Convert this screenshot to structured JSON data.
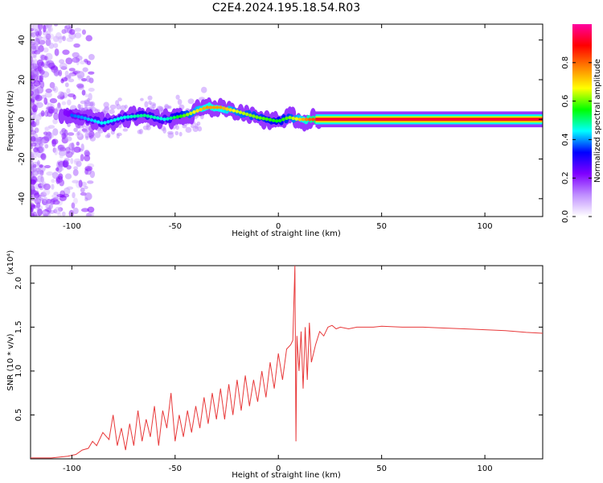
{
  "page_title": "C2E4.2024.195.18.54.R03",
  "chart_data": [
    {
      "type": "heatmap",
      "xlabel": "Height of straight line (km)",
      "ylabel": "Frequency (Hz)",
      "xlim": [
        -120,
        128
      ],
      "ylim": [
        -49,
        48
      ],
      "x_ticks": [
        -100,
        -50,
        0,
        50,
        100
      ],
      "y_ticks": [
        -40,
        -20,
        0,
        20,
        40
      ],
      "x_tick_labels": [
        "-100",
        "-50",
        "0",
        "50",
        "100"
      ],
      "y_tick_labels": [
        "-40",
        "-20",
        "0",
        "20",
        "40"
      ],
      "colorbar": {
        "label": "Normalized spectral amplitude",
        "range": [
          0,
          1
        ],
        "ticks": [
          0.0,
          0.2,
          0.4,
          0.6,
          0.8
        ],
        "tick_labels": [
          "0.0",
          "0.2",
          "0.4",
          "0.6",
          "0.8"
        ],
        "colormap": [
          "#ffffff",
          "#c090ff",
          "#8000ff",
          "#0000ff",
          "#00ffff",
          "#00ff00",
          "#ffff00",
          "#ff8000",
          "#ff0000",
          "#ff00a0"
        ]
      },
      "ridge": {
        "x": [
          -105,
          -95,
          -85,
          -75,
          -65,
          -55,
          -45,
          -35,
          -28,
          -20,
          -10,
          0,
          5,
          10,
          15,
          20,
          40,
          60,
          80,
          100,
          128
        ],
        "freq": [
          3,
          1,
          -2,
          1,
          2,
          0,
          2,
          6,
          6,
          4,
          1,
          -1,
          1,
          0,
          0,
          0,
          0,
          0,
          0,
          0,
          0
        ],
        "amplitude": [
          0.35,
          0.4,
          0.45,
          0.45,
          0.5,
          0.45,
          0.6,
          0.75,
          0.75,
          0.65,
          0.6,
          0.55,
          0.6,
          0.7,
          0.8,
          0.85,
          0.9,
          0.92,
          0.95,
          0.95,
          0.95
        ]
      }
    },
    {
      "type": "line",
      "xlabel": "Height of straight line (km)",
      "ylabel": "SNR (10 * v/v)",
      "y_scale_note": "(x10⁴)",
      "xlim": [
        -120,
        128
      ],
      "ylim": [
        0,
        2.2
      ],
      "x_ticks": [
        -100,
        -50,
        0,
        50,
        100
      ],
      "y_ticks": [
        0.5,
        1.0,
        1.5,
        2.0
      ],
      "x_tick_labels": [
        "-100",
        "-50",
        "0",
        "50",
        "100"
      ],
      "y_tick_labels": [
        "0.5",
        "1.0",
        "1.5",
        "2.0"
      ],
      "line_color": "#e8393a",
      "series": [
        {
          "x": [
            -120,
            -110,
            -102,
            -98,
            -95,
            -92,
            -90,
            -88,
            -85,
            -82,
            -80,
            -78,
            -76,
            -74,
            -72,
            -70,
            -68,
            -66,
            -64,
            -62,
            -60,
            -58,
            -56,
            -54,
            -52,
            -50,
            -48,
            -46,
            -44,
            -42,
            -40,
            -38,
            -36,
            -34,
            -32,
            -30,
            -28,
            -26,
            -24,
            -22,
            -20,
            -18,
            -16,
            -14,
            -12,
            -10,
            -8,
            -6,
            -4,
            -2,
            0,
            2,
            4,
            6,
            7,
            8,
            8.5,
            9,
            10,
            11,
            12,
            13,
            14,
            15,
            16,
            18,
            20,
            22,
            24,
            26,
            28,
            30,
            34,
            38,
            42,
            46,
            50,
            60,
            70,
            80,
            90,
            100,
            110,
            120,
            128
          ],
          "y": [
            0.01,
            0.01,
            0.03,
            0.05,
            0.1,
            0.12,
            0.2,
            0.15,
            0.3,
            0.22,
            0.5,
            0.15,
            0.35,
            0.1,
            0.4,
            0.15,
            0.55,
            0.2,
            0.45,
            0.25,
            0.6,
            0.15,
            0.55,
            0.35,
            0.75,
            0.2,
            0.5,
            0.25,
            0.55,
            0.3,
            0.6,
            0.35,
            0.7,
            0.4,
            0.75,
            0.45,
            0.8,
            0.45,
            0.85,
            0.5,
            0.9,
            0.55,
            0.95,
            0.6,
            0.9,
            0.65,
            1.0,
            0.7,
            1.1,
            0.8,
            1.2,
            0.9,
            1.25,
            1.3,
            1.35,
            2.2,
            0.2,
            1.4,
            1.0,
            1.45,
            0.8,
            1.5,
            0.9,
            1.55,
            1.1,
            1.3,
            1.45,
            1.4,
            1.5,
            1.52,
            1.48,
            1.5,
            1.48,
            1.5,
            1.5,
            1.5,
            1.51,
            1.5,
            1.5,
            1.49,
            1.48,
            1.47,
            1.46,
            1.44,
            1.43
          ]
        }
      ]
    }
  ]
}
